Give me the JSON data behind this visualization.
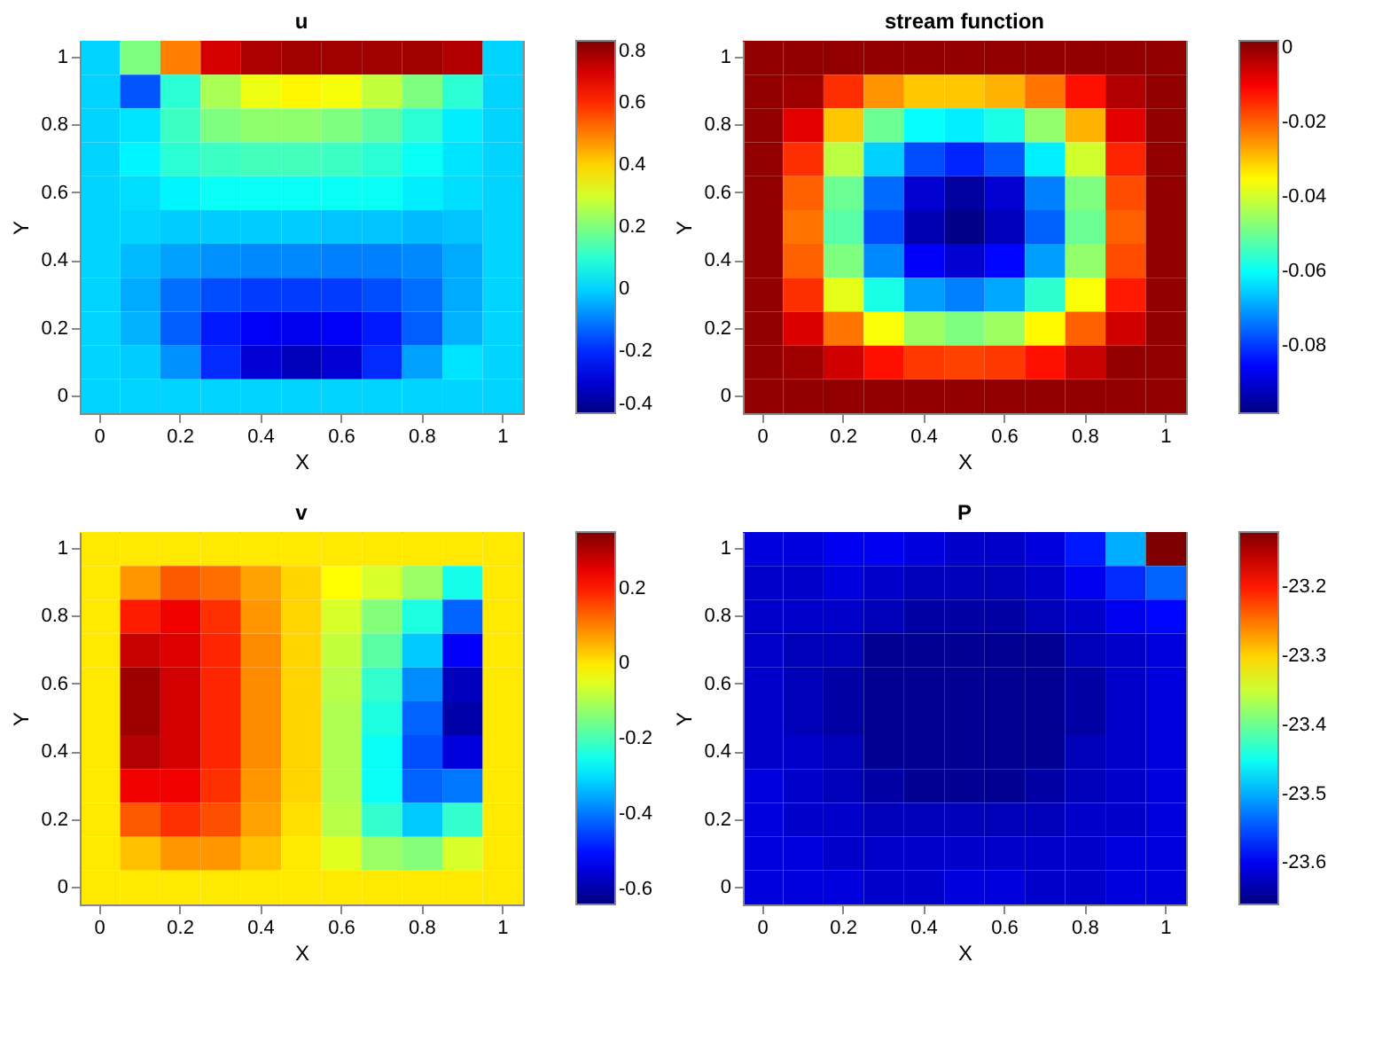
{
  "chart_data": [
    {
      "type": "heatmap",
      "title": "u",
      "xlabel": "X",
      "ylabel": "Y",
      "categories": [
        "0",
        null,
        "0.2",
        null,
        "0.4",
        null,
        "0.6",
        null,
        "0.8",
        null,
        "1"
      ],
      "y_categories": [
        "1",
        null,
        "0.8",
        null,
        "0.6",
        null,
        "0.4",
        null,
        "0.2",
        null,
        "0"
      ],
      "clim": [
        -0.4,
        0.8
      ],
      "cticks": [
        -0.4,
        -0.2,
        0,
        0.2,
        0.4,
        0.6,
        0.8
      ],
      "cells": [
        [
          0,
          0.2,
          0.5,
          0.7,
          0.75,
          0.76,
          0.76,
          0.76,
          0.76,
          0.74,
          0
        ],
        [
          0,
          -0.15,
          0.1,
          0.25,
          0.33,
          0.36,
          0.34,
          0.28,
          0.2,
          0.1,
          0
        ],
        [
          0,
          0.02,
          0.12,
          0.2,
          0.22,
          0.22,
          0.2,
          0.16,
          0.1,
          0.03,
          0
        ],
        [
          0,
          0.04,
          0.1,
          0.12,
          0.13,
          0.13,
          0.12,
          0.1,
          0.06,
          0.02,
          0
        ],
        [
          0,
          0.01,
          0.04,
          0.06,
          0.06,
          0.06,
          0.06,
          0.06,
          0.03,
          0.01,
          0
        ],
        [
          0,
          0,
          -0.01,
          -0.01,
          -0.01,
          -0.01,
          -0.02,
          -0.02,
          -0.03,
          -0.02,
          0
        ],
        [
          0,
          -0.03,
          -0.06,
          -0.08,
          -0.09,
          -0.09,
          -0.1,
          -0.1,
          -0.09,
          -0.05,
          0
        ],
        [
          0,
          -0.05,
          -0.12,
          -0.16,
          -0.18,
          -0.18,
          -0.18,
          -0.16,
          -0.12,
          -0.05,
          0
        ],
        [
          0,
          -0.04,
          -0.14,
          -0.22,
          -0.26,
          -0.27,
          -0.26,
          -0.22,
          -0.14,
          -0.04,
          0
        ],
        [
          0,
          -0.01,
          -0.08,
          -0.2,
          -0.3,
          -0.33,
          -0.3,
          -0.2,
          -0.06,
          0.02,
          0
        ],
        [
          0,
          0,
          0,
          0,
          0,
          0,
          0,
          0,
          0,
          0,
          0
        ]
      ]
    },
    {
      "type": "heatmap",
      "title": "stream function",
      "xlabel": "X",
      "ylabel": "Y",
      "categories": [
        "0",
        null,
        "0.2",
        null,
        "0.4",
        null,
        "0.6",
        null,
        "0.8",
        null,
        "1"
      ],
      "y_categories": [
        "1",
        null,
        "0.8",
        null,
        "0.6",
        null,
        "0.4",
        null,
        "0.2",
        null,
        "0"
      ],
      "clim": [
        -0.098,
        0.002
      ],
      "cticks": [
        -0.08,
        -0.06,
        -0.04,
        -0.02,
        0
      ],
      "cells": [
        [
          0,
          0,
          0,
          0,
          0,
          0,
          0,
          0,
          0,
          0,
          0
        ],
        [
          0,
          -0.001,
          -0.015,
          -0.025,
          -0.03,
          -0.03,
          -0.028,
          -0.022,
          -0.012,
          -0.003,
          0
        ],
        [
          0,
          -0.008,
          -0.03,
          -0.05,
          -0.06,
          -0.062,
          -0.058,
          -0.046,
          -0.028,
          -0.008,
          0
        ],
        [
          0,
          -0.015,
          -0.042,
          -0.065,
          -0.078,
          -0.082,
          -0.077,
          -0.062,
          -0.04,
          -0.014,
          0
        ],
        [
          0,
          -0.02,
          -0.05,
          -0.075,
          -0.09,
          -0.095,
          -0.09,
          -0.073,
          -0.048,
          -0.018,
          0
        ],
        [
          0,
          -0.022,
          -0.052,
          -0.078,
          -0.093,
          -0.097,
          -0.092,
          -0.076,
          -0.05,
          -0.02,
          0
        ],
        [
          0,
          -0.02,
          -0.048,
          -0.072,
          -0.086,
          -0.09,
          -0.085,
          -0.07,
          -0.046,
          -0.018,
          0
        ],
        [
          0,
          -0.015,
          -0.038,
          -0.058,
          -0.07,
          -0.073,
          -0.069,
          -0.056,
          -0.036,
          -0.013,
          0
        ],
        [
          0,
          -0.007,
          -0.022,
          -0.036,
          -0.045,
          -0.048,
          -0.045,
          -0.035,
          -0.02,
          -0.006,
          0
        ],
        [
          0,
          -0.001,
          -0.006,
          -0.012,
          -0.016,
          -0.017,
          -0.016,
          -0.012,
          -0.005,
          0,
          0
        ],
        [
          0,
          0,
          0,
          0,
          0,
          0,
          0,
          0,
          0,
          0,
          0
        ]
      ]
    },
    {
      "type": "heatmap",
      "title": "v",
      "xlabel": "X",
      "ylabel": "Y",
      "categories": [
        "0",
        null,
        "0.2",
        null,
        "0.4",
        null,
        "0.6",
        null,
        "0.8",
        null,
        "1"
      ],
      "y_categories": [
        "1",
        null,
        "0.8",
        null,
        "0.6",
        null,
        "0.4",
        null,
        "0.2",
        null,
        "0"
      ],
      "clim": [
        -0.64,
        0.35
      ],
      "cticks": [
        -0.6,
        -0.4,
        -0.2,
        0,
        0.2
      ],
      "cells": [
        [
          0,
          0,
          0,
          0,
          0,
          0,
          0,
          0,
          0,
          0,
          0
        ],
        [
          0,
          0.08,
          0.14,
          0.12,
          0.07,
          0.02,
          -0.02,
          -0.06,
          -0.12,
          -0.25,
          0
        ],
        [
          0,
          0.2,
          0.24,
          0.18,
          0.08,
          0.02,
          -0.06,
          -0.14,
          -0.24,
          -0.42,
          0
        ],
        [
          0,
          0.28,
          0.26,
          0.19,
          0.09,
          0.02,
          -0.08,
          -0.18,
          -0.32,
          -0.52,
          0
        ],
        [
          0,
          0.32,
          0.27,
          0.19,
          0.09,
          0.02,
          -0.09,
          -0.22,
          -0.38,
          -0.58,
          0
        ],
        [
          0,
          0.32,
          0.27,
          0.19,
          0.09,
          0.02,
          -0.1,
          -0.24,
          -0.42,
          -0.6,
          0
        ],
        [
          0,
          0.3,
          0.27,
          0.19,
          0.09,
          0.02,
          -0.1,
          -0.26,
          -0.44,
          -0.55,
          0
        ],
        [
          0,
          0.24,
          0.24,
          0.18,
          0.08,
          0.02,
          -0.1,
          -0.26,
          -0.42,
          -0.4,
          0
        ],
        [
          0,
          0.14,
          0.18,
          0.15,
          0.07,
          0.01,
          -0.09,
          -0.22,
          -0.32,
          -0.22,
          0
        ],
        [
          0,
          0.04,
          0.08,
          0.08,
          0.04,
          0,
          -0.05,
          -0.12,
          -0.14,
          -0.06,
          0
        ],
        [
          0,
          0,
          0,
          0,
          0,
          0,
          0,
          0,
          0,
          0,
          0
        ]
      ]
    },
    {
      "type": "heatmap",
      "title": "P",
      "xlabel": "X",
      "ylabel": "Y",
      "categories": [
        "0",
        null,
        "0.2",
        null,
        "0.4",
        null,
        "0.6",
        null,
        "0.8",
        null,
        "1"
      ],
      "y_categories": [
        "1",
        null,
        "0.8",
        null,
        "0.6",
        null,
        "0.4",
        null,
        "0.2",
        null,
        "0"
      ],
      "clim": [
        -23.66,
        -23.12
      ],
      "cticks": [
        -23.6,
        -23.5,
        -23.4,
        -23.3,
        -23.2
      ],
      "cells": [
        [
          -23.61,
          -23.61,
          -23.6,
          -23.6,
          -23.61,
          -23.62,
          -23.62,
          -23.61,
          -23.58,
          -23.5,
          -23.12
        ],
        [
          -23.62,
          -23.62,
          -23.61,
          -23.62,
          -23.63,
          -23.63,
          -23.63,
          -23.62,
          -23.6,
          -23.57,
          -23.54
        ],
        [
          -23.62,
          -23.62,
          -23.62,
          -23.63,
          -23.64,
          -23.64,
          -23.64,
          -23.63,
          -23.62,
          -23.6,
          -23.59
        ],
        [
          -23.62,
          -23.63,
          -23.63,
          -23.65,
          -23.65,
          -23.65,
          -23.65,
          -23.65,
          -23.63,
          -23.62,
          -23.61
        ],
        [
          -23.62,
          -23.63,
          -23.64,
          -23.65,
          -23.65,
          -23.65,
          -23.65,
          -23.65,
          -23.64,
          -23.62,
          -23.61
        ],
        [
          -23.62,
          -23.63,
          -23.64,
          -23.65,
          -23.65,
          -23.65,
          -23.65,
          -23.65,
          -23.64,
          -23.62,
          -23.61
        ],
        [
          -23.62,
          -23.62,
          -23.63,
          -23.65,
          -23.65,
          -23.65,
          -23.65,
          -23.65,
          -23.63,
          -23.62,
          -23.61
        ],
        [
          -23.61,
          -23.62,
          -23.63,
          -23.64,
          -23.65,
          -23.65,
          -23.65,
          -23.64,
          -23.63,
          -23.62,
          -23.61
        ],
        [
          -23.61,
          -23.62,
          -23.62,
          -23.63,
          -23.63,
          -23.63,
          -23.63,
          -23.63,
          -23.62,
          -23.62,
          -23.61
        ],
        [
          -23.61,
          -23.61,
          -23.62,
          -23.62,
          -23.62,
          -23.62,
          -23.62,
          -23.62,
          -23.62,
          -23.61,
          -23.61
        ],
        [
          -23.61,
          -23.61,
          -23.61,
          -23.62,
          -23.62,
          -23.61,
          -23.61,
          -23.62,
          -23.62,
          -23.61,
          -23.61
        ]
      ]
    }
  ]
}
